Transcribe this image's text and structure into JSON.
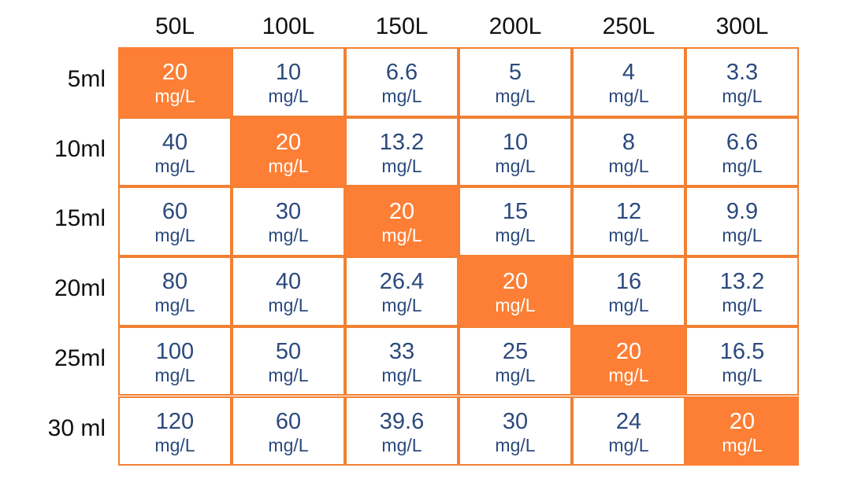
{
  "chart_data": {
    "type": "table",
    "columns": [
      "50L",
      "100L",
      "150L",
      "200L",
      "250L",
      "300L"
    ],
    "rows": [
      "5ml",
      "10ml",
      "15ml",
      "20ml",
      "25ml",
      "30 ml"
    ],
    "unit": "mg/L",
    "values": [
      [
        "20",
        "10",
        "6.6",
        "5",
        "4",
        "3.3"
      ],
      [
        "40",
        "20",
        "13.2",
        "10",
        "8",
        "6.6"
      ],
      [
        "60",
        "30",
        "20",
        "15",
        "12",
        "9.9"
      ],
      [
        "80",
        "40",
        "26.4",
        "20",
        "16",
        "13.2"
      ],
      [
        "100",
        "50",
        "33",
        "25",
        "20",
        "16.5"
      ],
      [
        "120",
        "60",
        "39.6",
        "30",
        "24",
        "20"
      ]
    ],
    "highlighted": [
      [
        0,
        0
      ],
      [
        1,
        1
      ],
      [
        2,
        2
      ],
      [
        3,
        3
      ],
      [
        4,
        4
      ],
      [
        5,
        5
      ]
    ],
    "colors": {
      "highlight_fill": "#fc7f35",
      "border": "#f28033",
      "value_text": "#2b4a7d",
      "highlight_text": "#ffffff",
      "header_text": "#111111"
    }
  }
}
